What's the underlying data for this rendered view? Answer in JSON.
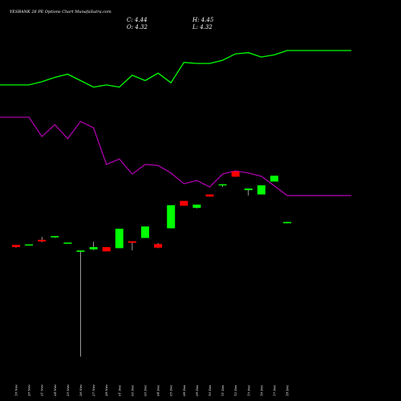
{
  "chart_data": {
    "type": "candlestick",
    "title": "YESBANK 26 PE Options  Chart MunafaSutra.com",
    "ohlc": {
      "open_label": "O: 4.32",
      "high_label": "H: 4.45",
      "low_label": "L: 4.32",
      "close_label": "C: 4.44"
    },
    "categories": [
      "19 Nov",
      "20 Nov",
      "21 Nov",
      "24 Nov",
      "25 Nov",
      "26 Nov",
      "27 Nov",
      "28 Nov",
      "01 Dec",
      "02 Dec",
      "03 Dec",
      "04 Dec",
      "05 Dec",
      "08 Dec",
      "09 Dec",
      "10 Dec",
      "11 Dec",
      "12 Dec",
      "15 Dec",
      "16 Dec",
      "17 Dec",
      "18 Dec"
    ],
    "candles": [
      {
        "o": 2.3,
        "h": 2.3,
        "l": 2.05,
        "c": 2.1
      },
      {
        "o": 2.32,
        "h": 2.35,
        "l": 2.3,
        "c": 2.35
      },
      {
        "o": 2.78,
        "h": 3.05,
        "l": 2.55,
        "c": 2.62
      },
      {
        "o": 3.0,
        "h": 3.05,
        "l": 2.95,
        "c": 3.12
      },
      {
        "o": 2.5,
        "h": 2.52,
        "l": 2.43,
        "c": 2.52
      },
      {
        "o": 1.65,
        "h": 1.78,
        "l": -8.1,
        "c": 1.78
      },
      {
        "o": 1.88,
        "h": 2.6,
        "l": 1.82,
        "c": 2.1
      },
      {
        "o": 2.1,
        "h": 2.1,
        "l": 1.7,
        "c": 1.7
      },
      {
        "o": 2.0,
        "h": 3.8,
        "l": 2.0,
        "c": 3.8
      },
      {
        "o": 2.64,
        "h": 2.64,
        "l": 1.8,
        "c": 2.5
      },
      {
        "o": 2.95,
        "h": 4.02,
        "l": 2.95,
        "c": 4.02
      },
      {
        "o": 2.38,
        "h": 2.48,
        "l": 2.0,
        "c": 2.05
      },
      {
        "o": 3.85,
        "h": 6.0,
        "l": 3.85,
        "c": 6.0
      },
      {
        "o": 6.4,
        "h": 6.4,
        "l": 5.95,
        "c": 5.95
      },
      {
        "o": 5.75,
        "h": 6.05,
        "l": 5.7,
        "c": 6.05
      },
      {
        "o": 7.0,
        "h": 7.0,
        "l": 6.8,
        "c": 6.8
      },
      {
        "o": 7.95,
        "h": 7.95,
        "l": 7.7,
        "c": 7.95
      },
      {
        "o": 9.15,
        "h": 9.15,
        "l": 8.65,
        "c": 8.65
      },
      {
        "o": 7.4,
        "h": 7.55,
        "l": 6.9,
        "c": 7.55
      },
      {
        "o": 7.0,
        "h": 7.85,
        "l": 7.0,
        "c": 7.85
      },
      {
        "o": 8.2,
        "h": 8.75,
        "l": 8.2,
        "c": 8.75
      },
      {
        "o": 4.32,
        "h": 4.45,
        "l": 4.32,
        "c": 4.44
      }
    ],
    "line1": [
      17.2,
      17.2,
      17.5,
      17.9,
      18.2,
      17.6,
      17.0,
      17.2,
      17.0,
      18.1,
      17.6,
      18.3,
      17.4,
      19.3,
      19.2,
      19.2,
      19.5,
      20.1,
      20.2,
      19.8,
      20.0,
      20.4
    ],
    "line2": [
      14.2,
      14.2,
      12.4,
      13.5,
      12.2,
      13.8,
      13.2,
      9.8,
      10.3,
      8.9,
      9.8,
      9.7,
      9.0,
      8.0,
      8.3,
      7.7,
      8.9,
      9.2,
      9.0,
      8.7,
      7.8,
      6.9
    ],
    "ylim": [
      -8.5,
      21
    ],
    "colors": {
      "up": "#00ff00",
      "down": "#ff0000",
      "line1": "#00ff00",
      "line2": "#aa00aa",
      "wick": "#ffffff"
    }
  }
}
